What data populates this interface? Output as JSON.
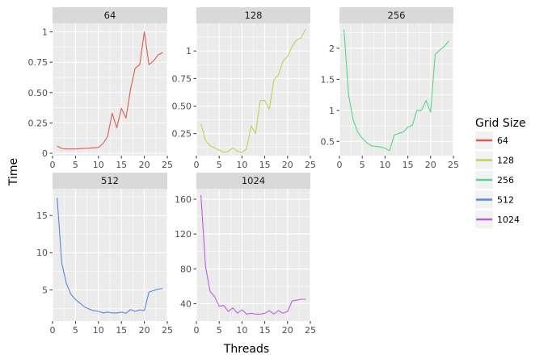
{
  "chart_data": {
    "type": "line",
    "xlabel": "Threads",
    "ylabel": "Time",
    "legend": {
      "title": "Grid Size",
      "placement": "right",
      "entries": [
        {
          "label": "64",
          "color": "#e05b4b"
        },
        {
          "label": "128",
          "color": "#b9d45a"
        },
        {
          "label": "256",
          "color": "#56d48a"
        },
        {
          "label": "512",
          "color": "#5b87df"
        },
        {
          "label": "1024",
          "color": "#c05be0"
        }
      ]
    },
    "grid": true,
    "panels": [
      {
        "strip": "64",
        "color": "#e05b4b",
        "xlim": [
          0,
          25
        ],
        "ylim": [
          -0.02,
          1.07
        ],
        "x_ticks": [
          0,
          5,
          10,
          15,
          20,
          25
        ],
        "x_tick_labels": [
          "0",
          "5",
          "10",
          "15",
          "20",
          "25"
        ],
        "y_ticks": [
          0,
          0.25,
          0.5,
          0.75,
          1
        ],
        "y_tick_labels": [
          "0",
          "0.25",
          "0.50",
          "0.75",
          "1"
        ],
        "x": [
          1,
          2,
          3,
          4,
          5,
          6,
          7,
          8,
          9,
          10,
          11,
          12,
          13,
          14,
          15,
          16,
          17,
          18,
          19,
          20,
          21,
          22,
          23,
          24
        ],
        "y": [
          0.06,
          0.04,
          0.035,
          0.035,
          0.035,
          0.038,
          0.04,
          0.042,
          0.045,
          0.048,
          0.08,
          0.14,
          0.33,
          0.21,
          0.37,
          0.29,
          0.53,
          0.7,
          0.73,
          1.0,
          0.73,
          0.76,
          0.81,
          0.83
        ]
      },
      {
        "strip": "128",
        "color": "#b9d45a",
        "xlim": [
          0,
          25
        ],
        "ylim": [
          0.05,
          1.25
        ],
        "x_ticks": [
          0,
          5,
          10,
          15,
          20,
          25
        ],
        "x_tick_labels": [
          "0",
          "5",
          "10",
          "15",
          "20",
          "25"
        ],
        "y_ticks": [
          0.25,
          0.5,
          0.75,
          1
        ],
        "y_tick_labels": [
          "0.25",
          "0.50",
          "0.75",
          "1"
        ],
        "x": [
          1,
          2,
          3,
          4,
          5,
          6,
          7,
          8,
          9,
          10,
          11,
          12,
          13,
          14,
          15,
          16,
          17,
          18,
          19,
          20,
          21,
          22,
          23,
          24
        ],
        "y": [
          0.34,
          0.19,
          0.14,
          0.12,
          0.1,
          0.08,
          0.09,
          0.12,
          0.09,
          0.08,
          0.11,
          0.32,
          0.25,
          0.55,
          0.55,
          0.47,
          0.74,
          0.78,
          0.91,
          0.95,
          1.04,
          1.1,
          1.12,
          1.2
        ]
      },
      {
        "strip": "256",
        "color": "#56d48a",
        "xlim": [
          0,
          25
        ],
        "ylim": [
          0.27,
          2.4
        ],
        "x_ticks": [
          0,
          5,
          10,
          15,
          20,
          25
        ],
        "x_tick_labels": [
          "0",
          "5",
          "10",
          "15",
          "20",
          "25"
        ],
        "y_ticks": [
          0.5,
          1,
          1.5,
          2
        ],
        "y_tick_labels": [
          "0.5",
          "1",
          "1.5",
          "2"
        ],
        "x": [
          1,
          2,
          3,
          4,
          5,
          6,
          7,
          8,
          9,
          10,
          11,
          12,
          13,
          14,
          15,
          16,
          17,
          18,
          19,
          20,
          21,
          22,
          23,
          24
        ],
        "y": [
          2.3,
          1.25,
          0.85,
          0.65,
          0.55,
          0.48,
          0.43,
          0.42,
          0.41,
          0.39,
          0.35,
          0.6,
          0.63,
          0.65,
          0.73,
          0.76,
          1.0,
          1.0,
          1.16,
          0.97,
          1.9,
          1.97,
          2.03,
          2.12
        ]
      },
      {
        "strip": "512",
        "color": "#5b87df",
        "xlim": [
          0,
          25
        ],
        "ylim": [
          0.8,
          18.6
        ],
        "x_ticks": [
          0,
          5,
          10,
          15,
          20,
          25
        ],
        "x_tick_labels": [
          "0",
          "5",
          "10",
          "15",
          "20",
          "25"
        ],
        "y_ticks": [
          5,
          10,
          15
        ],
        "y_tick_labels": [
          "5",
          "10",
          "15"
        ],
        "x": [
          1,
          2,
          3,
          4,
          5,
          6,
          7,
          8,
          9,
          10,
          11,
          12,
          13,
          14,
          15,
          16,
          17,
          18,
          19,
          20,
          21,
          22,
          23,
          24
        ],
        "y": [
          17.4,
          8.6,
          5.9,
          4.4,
          3.7,
          3.2,
          2.7,
          2.4,
          2.2,
          2.1,
          1.9,
          2.0,
          1.9,
          1.9,
          2.0,
          1.85,
          2.35,
          2.1,
          2.3,
          2.2,
          4.7,
          4.9,
          5.1,
          5.2
        ]
      },
      {
        "strip": "1024",
        "color": "#c05be0",
        "xlim": [
          0,
          25
        ],
        "ylim": [
          20,
          172
        ],
        "x_ticks": [
          0,
          5,
          10,
          15,
          20,
          25
        ],
        "x_tick_labels": [
          "0",
          "5",
          "10",
          "15",
          "20",
          "25"
        ],
        "y_ticks": [
          40,
          80,
          120,
          160
        ],
        "y_tick_labels": [
          "40",
          "80",
          "120",
          "160"
        ],
        "x": [
          1,
          2,
          3,
          4,
          5,
          6,
          7,
          8,
          9,
          10,
          11,
          12,
          13,
          14,
          15,
          16,
          17,
          18,
          19,
          20,
          21,
          22,
          23,
          24
        ],
        "y": [
          165,
          83,
          54,
          48,
          37,
          38,
          31,
          35,
          29,
          33,
          28,
          29,
          28,
          28,
          29,
          32,
          28,
          32,
          29,
          31,
          43,
          44,
          45,
          45
        ]
      }
    ]
  }
}
